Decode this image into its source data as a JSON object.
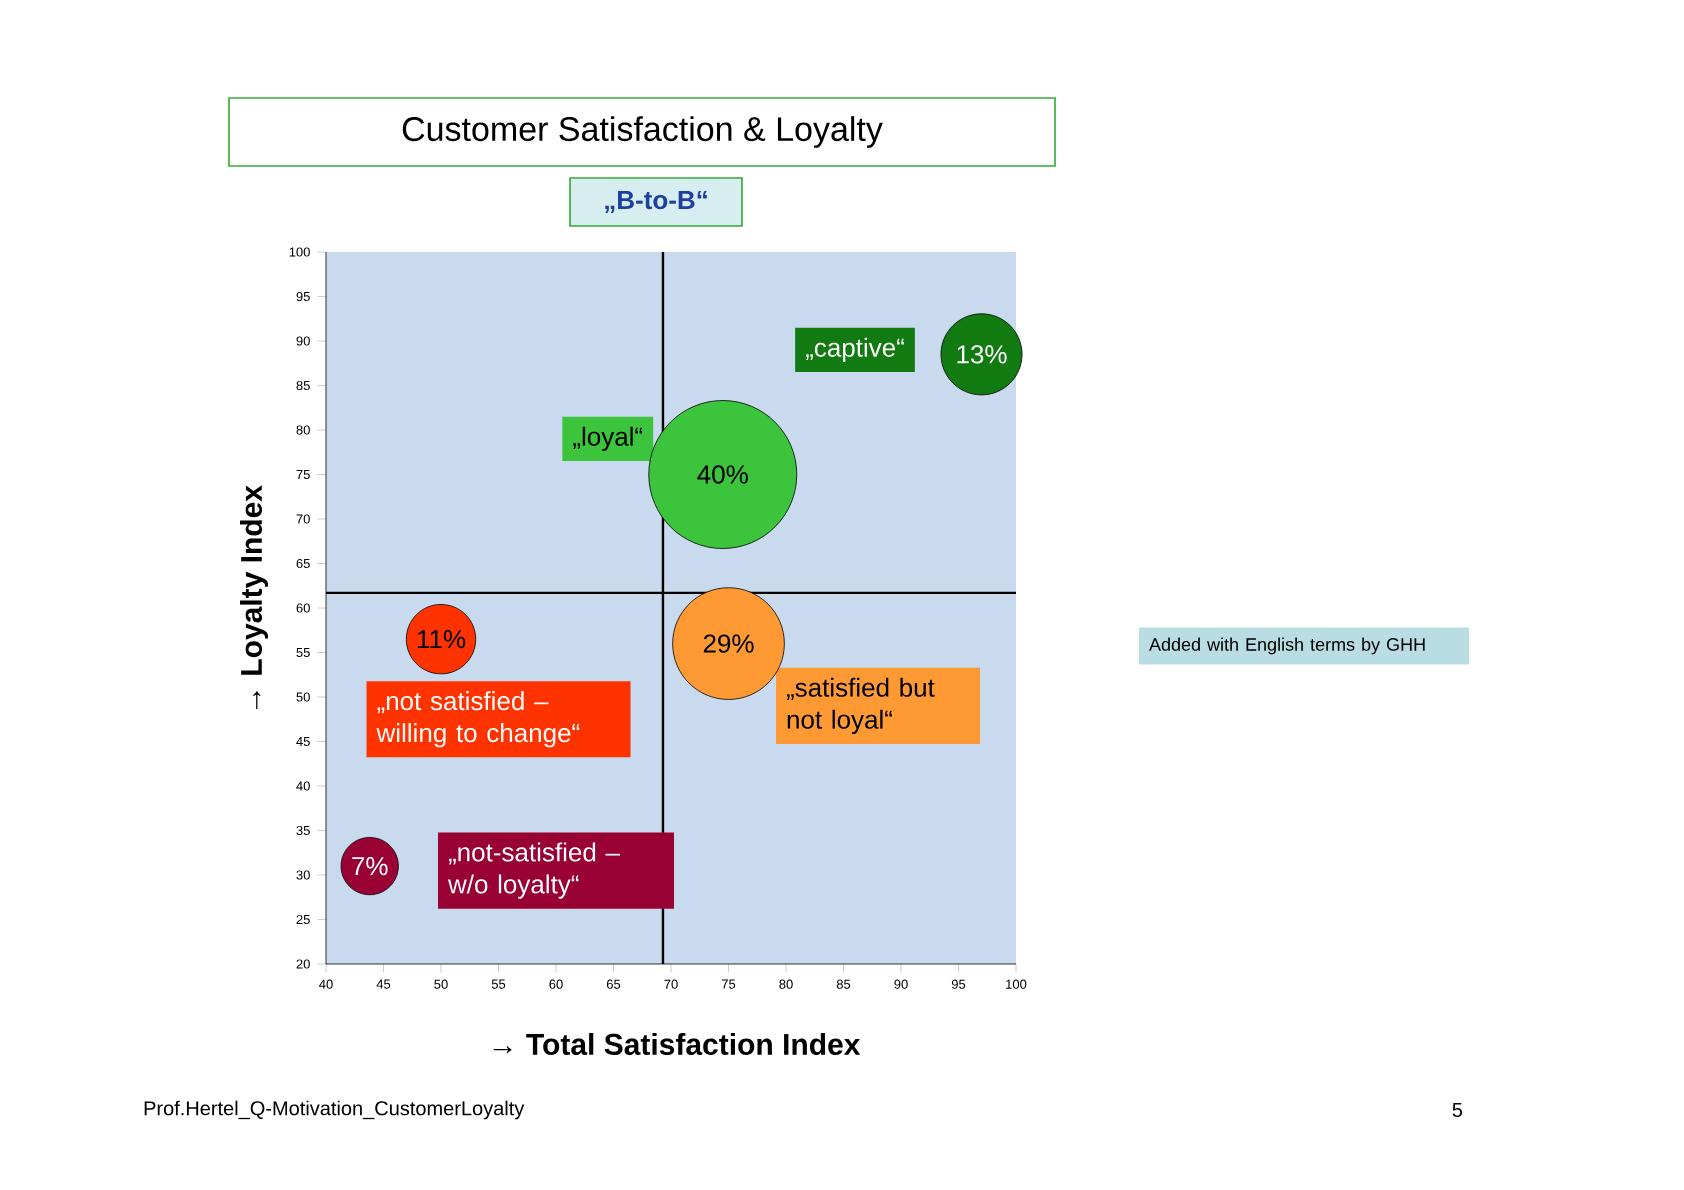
{
  "chart_data": {
    "type": "bubble",
    "title": "Customer Satisfaction & Loyalty",
    "subtitle": "„B-to-B“",
    "xlabel": "→ Total Satisfaction Index",
    "ylabel": "→ Loyalty  Index",
    "xlim": [
      40,
      100
    ],
    "ylim": [
      20,
      100
    ],
    "xticks": [
      40,
      45,
      50,
      55,
      60,
      65,
      70,
      75,
      80,
      85,
      90,
      95,
      100
    ],
    "yticks": [
      20,
      25,
      30,
      35,
      40,
      45,
      50,
      55,
      60,
      65,
      70,
      75,
      80,
      85,
      90,
      95,
      100
    ],
    "series": [
      {
        "name": "„captive“",
        "color": "#117a11",
        "x": [
          97
        ],
        "values": [
          88.5
        ],
        "sizes": [
          0.3
        ]
      },
      {
        "name": "„loyal“",
        "color": "#3cc43c",
        "x": [
          74.5
        ],
        "values": [
          75
        ],
        "sizes": [
          1
        ]
      },
      {
        "name": "„not satisfied – willing to change“",
        "color": "#ff3300",
        "x": [
          50
        ],
        "values": [
          56.5
        ],
        "sizes": [
          0.22
        ]
      },
      {
        "name": "„satisfied but not loyal“",
        "color": "#ff9933",
        "x": [
          75
        ],
        "values": [
          56
        ],
        "sizes": [
          0.57
        ]
      },
      {
        "name": "„not-satisfied – w/o loyalty“",
        "color": "#990033",
        "x": [
          43.8
        ],
        "values": [
          31
        ],
        "sizes": [
          0.15
        ]
      }
    ],
    "ref_lines": [
      {
        "axis": "x",
        "value": 69.3
      },
      {
        "axis": "y",
        "value": 61.7
      }
    ],
    "annotations": [
      "Prof.Hertel_Q-Motivation_CustomerLoyalty",
      "5",
      "Added with English terms by GHH",
      {
        "text": "13%",
        "x": 97,
        "y": 88.5
      },
      {
        "text": "40%",
        "x": 74.5,
        "y": 75
      },
      {
        "text": "11%",
        "x": 50,
        "y": 56.5
      },
      {
        "text": "29%",
        "x": 75,
        "y": 56
      },
      {
        "text": "7%",
        "x": 43.8,
        "y": 31
      }
    ]
  }
}
